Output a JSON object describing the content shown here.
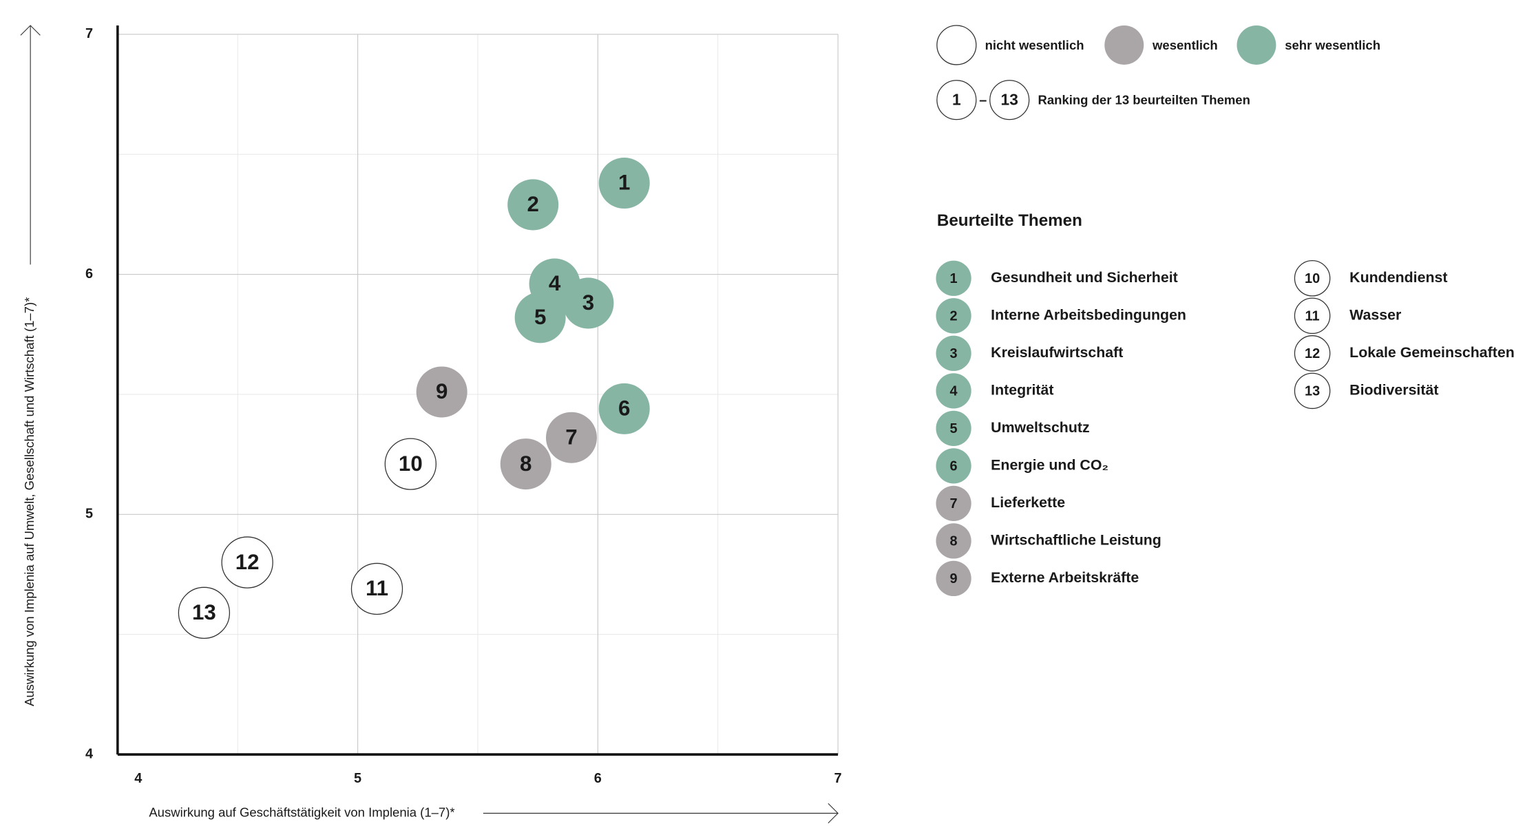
{
  "chart_data": {
    "type": "scatter",
    "xlabel": "Auswirkung auf Geschäftstätigkeit von Implenia (1–7)*",
    "ylabel": "Auswirkung von Implenia auf Umwelt, Gesellschaft und Wirtschaft (1–7)*",
    "xlim": [
      4,
      7
    ],
    "ylim": [
      4,
      7
    ],
    "xticks": [
      4,
      5,
      6,
      7
    ],
    "yticks": [
      4,
      5,
      6,
      7
    ],
    "grid": true,
    "series": [
      {
        "name": "sehr wesentlich",
        "color": "#87b5a4",
        "ranks": [
          1,
          2,
          3,
          4,
          5,
          6
        ],
        "topics": [
          "Gesundheit und Sicherheit",
          "Interne Arbeitsbedingungen",
          "Kreislaufwirtschaft",
          "Integrität",
          "Umweltschutz",
          "Energie und CO₂"
        ],
        "x": [
          6.11,
          5.73,
          5.96,
          5.82,
          5.76,
          6.11
        ],
        "y": [
          6.38,
          6.29,
          5.88,
          5.96,
          5.82,
          5.44
        ]
      },
      {
        "name": "wesentlich",
        "color": "#aaa6a7",
        "ranks": [
          7,
          8,
          9
        ],
        "topics": [
          "Lieferkette",
          "Wirtschaftliche Leistung",
          "Externe Arbeitskräfte"
        ],
        "x": [
          5.89,
          5.7,
          5.35
        ],
        "y": [
          5.32,
          5.21,
          5.51
        ]
      },
      {
        "name": "nicht wesentlich",
        "color": "#ffffff",
        "ranks": [
          10,
          11,
          12,
          13
        ],
        "topics": [
          "Kundendienst",
          "Wasser",
          "Lokale Gemeinschaften",
          "Biodiversität"
        ],
        "x": [
          5.22,
          5.08,
          4.54,
          4.36
        ],
        "y": [
          5.21,
          4.69,
          4.8,
          4.59
        ]
      }
    ],
    "ranking_legend": {
      "from": 1,
      "dash": "–",
      "to": 13,
      "text": "Ranking der 13 beurteilten Themen"
    },
    "topics_title": "Beurteilte Themen"
  }
}
